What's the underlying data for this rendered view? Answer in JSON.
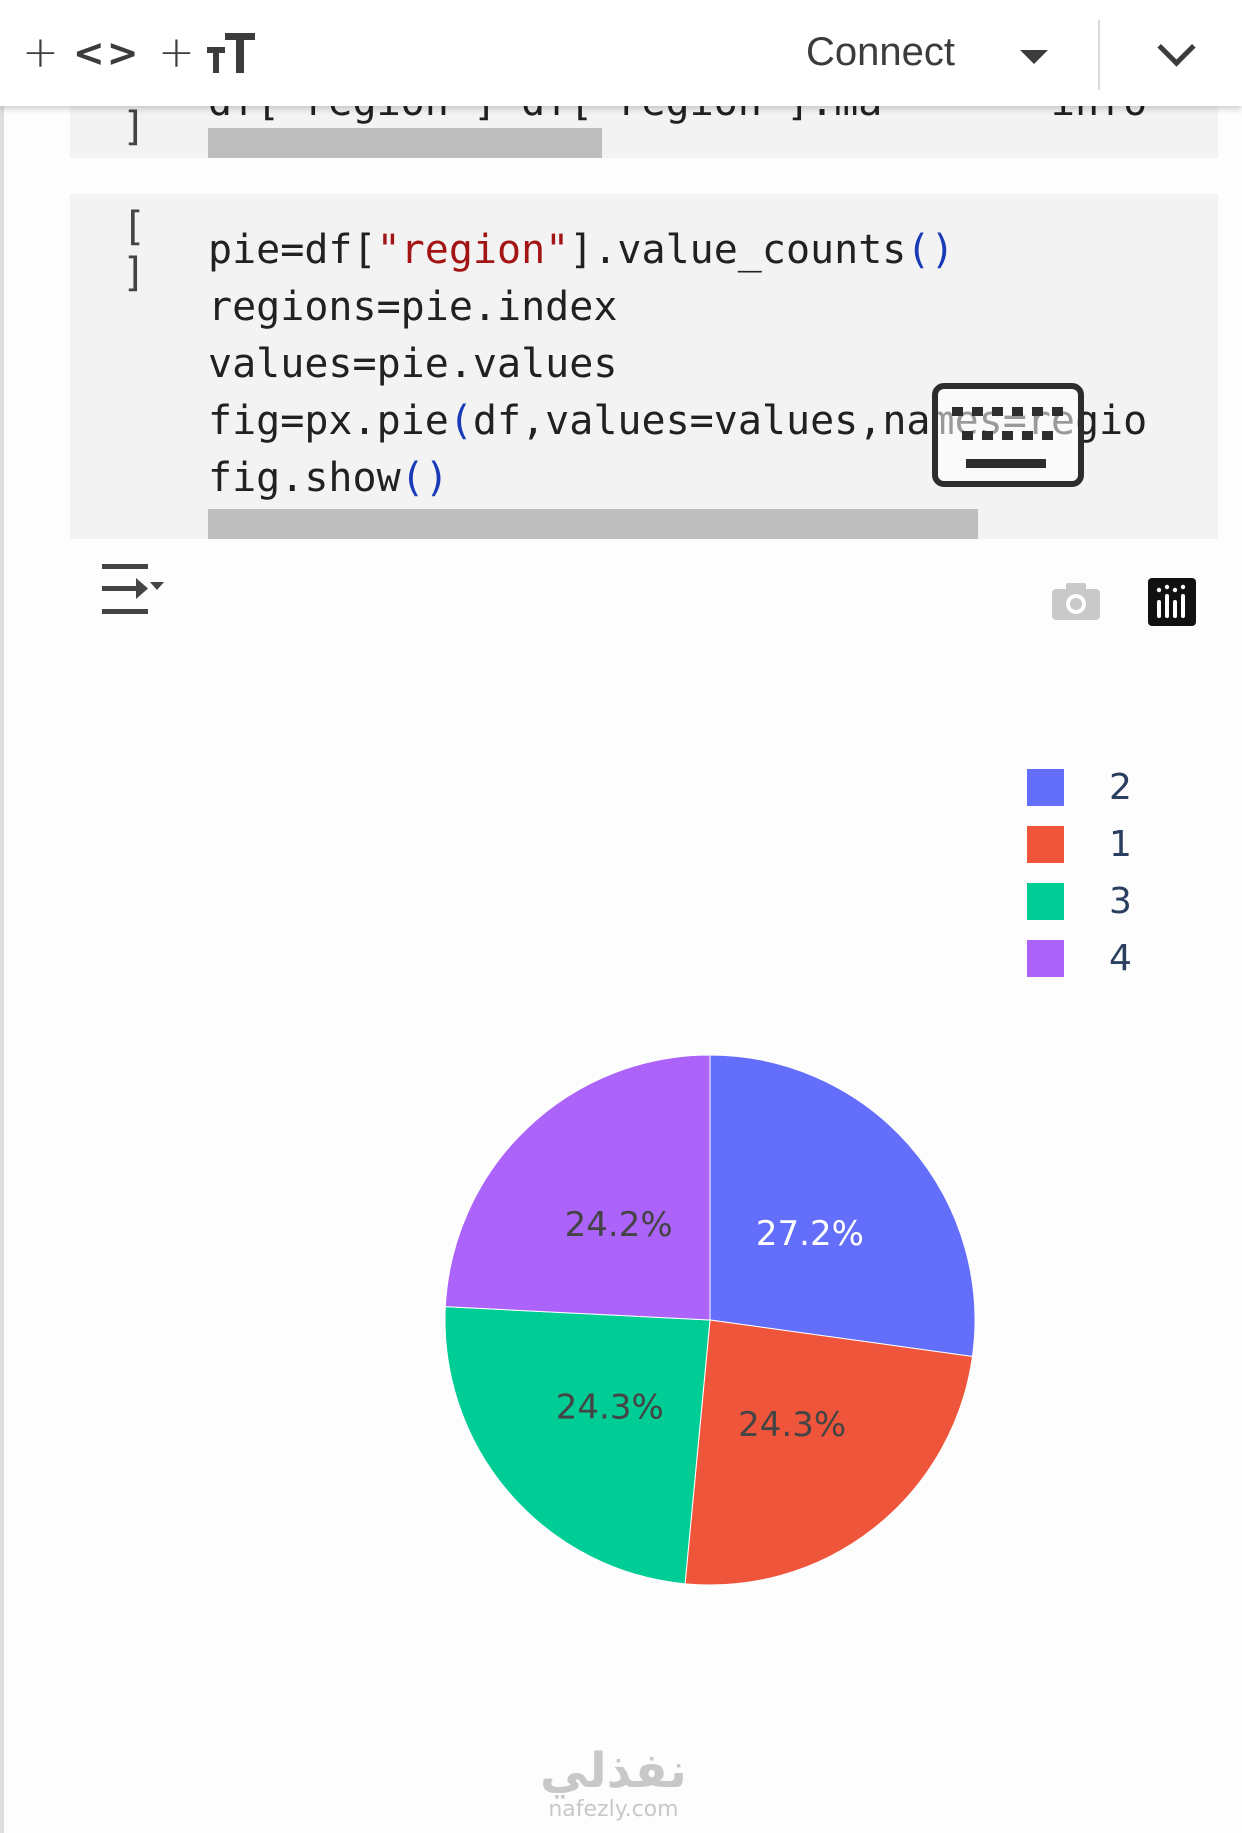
{
  "toolbar": {
    "add_code_plus": "+",
    "add_code_symbol": "<>",
    "add_text_plus": "+",
    "add_text_symbol": "тT",
    "connect_label": "Connect"
  },
  "cell1": {
    "bracket_close": "]",
    "partial_code": "df[\"region\"] df[\"region\"].ma       info"
  },
  "cell2": {
    "bracket_open": "[",
    "bracket_close": "]",
    "lines": {
      "l1_a": "pie=df[",
      "l1_str": "\"region\"",
      "l1_b": "].value_counts",
      "l1_par": "()",
      "l2": "regions=pie.index",
      "l3": "values=pie.values",
      "l4_a": "fig=px.pie",
      "l4_par": "(",
      "l4_b": "df,values=values,names=regio",
      "l5_a": "fig.show",
      "l5_par": "()"
    }
  },
  "output_icons": {
    "output_actions": "output-actions-icon",
    "camera": "camera-icon",
    "plotly": "plotly-logo-icon"
  },
  "chart_data": {
    "type": "pie",
    "categories": [
      "2",
      "1",
      "3",
      "4"
    ],
    "values": [
      27.2,
      24.3,
      24.3,
      24.2
    ],
    "labels_pct": [
      "27.2%",
      "24.3%",
      "24.3%",
      "24.2%"
    ],
    "colors": [
      "#636efa",
      "#ef553b",
      "#00cc96",
      "#ab63fa"
    ],
    "legend_position": "top-right"
  },
  "watermark": {
    "arabic": "نفذلي",
    "latin": "nafezly.com"
  }
}
